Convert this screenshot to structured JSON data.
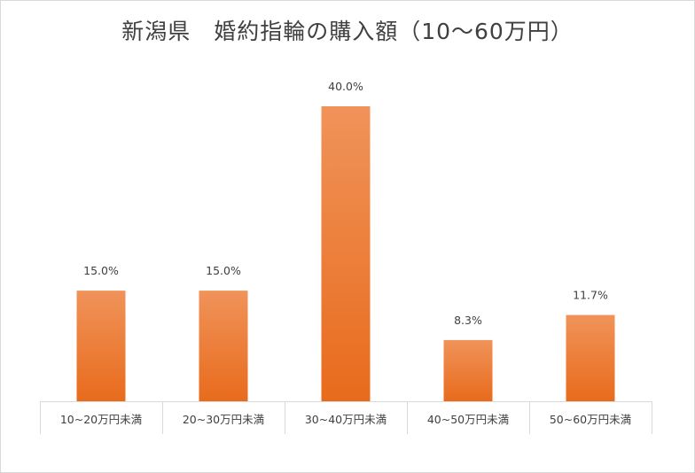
{
  "title": "新潟県　婚約指輪の購入額（10〜60万円）",
  "colors": {
    "bar_top": "#f0935a",
    "bar_bottom": "#e86b1c",
    "axis": "#d9d9d9",
    "text": "#404040"
  },
  "chart_data": {
    "type": "bar",
    "title": "新潟県　婚約指輪の購入額（10〜60万円）",
    "categories": [
      "10~20万円未満",
      "20~30万円未満",
      "30~40万円未満",
      "40~50万円未満",
      "50~60万円未満"
    ],
    "values": [
      15.0,
      15.0,
      40.0,
      8.3,
      11.7
    ],
    "value_labels": [
      "15.0%",
      "15.0%",
      "40.0%",
      "8.3%",
      "11.7%"
    ],
    "unit": "%",
    "xlabel": "",
    "ylabel": "",
    "ylim": [
      0,
      40
    ],
    "grid": false,
    "legend": "none"
  }
}
